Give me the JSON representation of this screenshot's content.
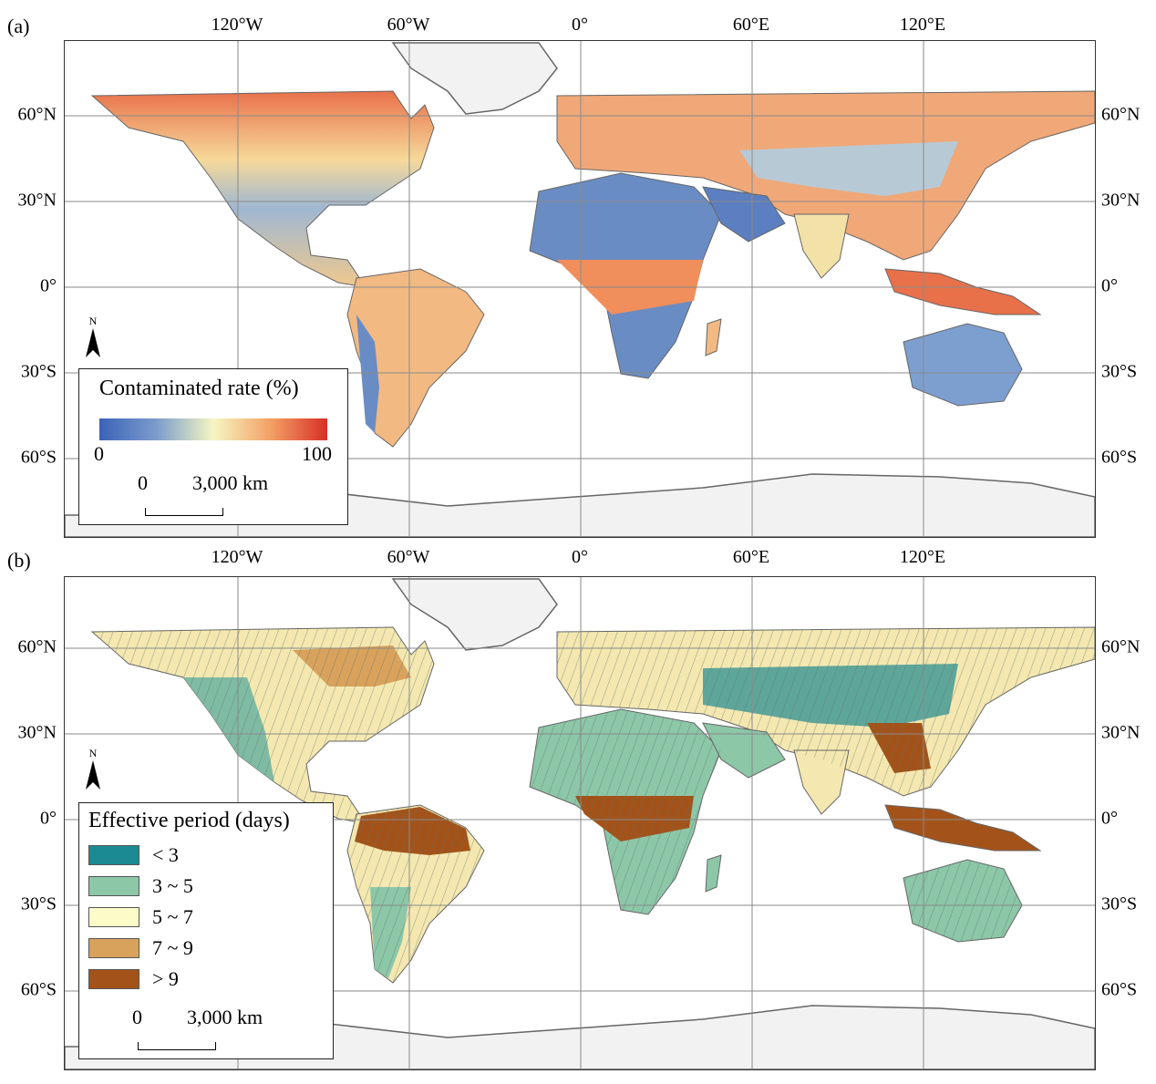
{
  "panels": [
    {
      "id": "a",
      "label": "(a)",
      "lon_ticks": [
        "120°W",
        "60°W",
        "0°",
        "60°E",
        "120°E"
      ],
      "lat_ticks": [
        "60°N",
        "30°N",
        "0°",
        "30°S",
        "60°S"
      ],
      "legend": {
        "title": "Contaminated rate (%)",
        "type": "continuous",
        "min_label": "0",
        "max_label": "100",
        "colors": [
          "#3b62b8",
          "#7b9ccc",
          "#f6f6c2",
          "#f3a166",
          "#d82f27"
        ]
      },
      "scale_bar": {
        "zero": "0",
        "length_label": "3,000 km"
      },
      "north_arrow": "N"
    },
    {
      "id": "b",
      "label": "(b)",
      "lon_ticks": [
        "120°W",
        "60°W",
        "0°",
        "60°E",
        "120°E"
      ],
      "lat_ticks": [
        "60°N",
        "30°N",
        "0°",
        "30°S",
        "60°S"
      ],
      "legend": {
        "title": "Effective period (days)",
        "type": "classes",
        "classes": [
          {
            "label": "< 3",
            "color": "#1b8a92"
          },
          {
            "label": "3 ~ 5",
            "color": "#8cc7a8"
          },
          {
            "label": "5 ~ 7",
            "color": "#fcfcc8"
          },
          {
            "label": "7 ~ 9",
            "color": "#d9a25c"
          },
          {
            "label": "> 9",
            "color": "#a3531a"
          }
        ]
      },
      "scale_bar": {
        "zero": "0",
        "length_label": "3,000 km"
      },
      "north_arrow": "N"
    }
  ],
  "colors": {
    "ocean": "#ffffff",
    "ice": "#f2f2f2",
    "coast": "#666666",
    "graticule": "#8a8a8a"
  }
}
